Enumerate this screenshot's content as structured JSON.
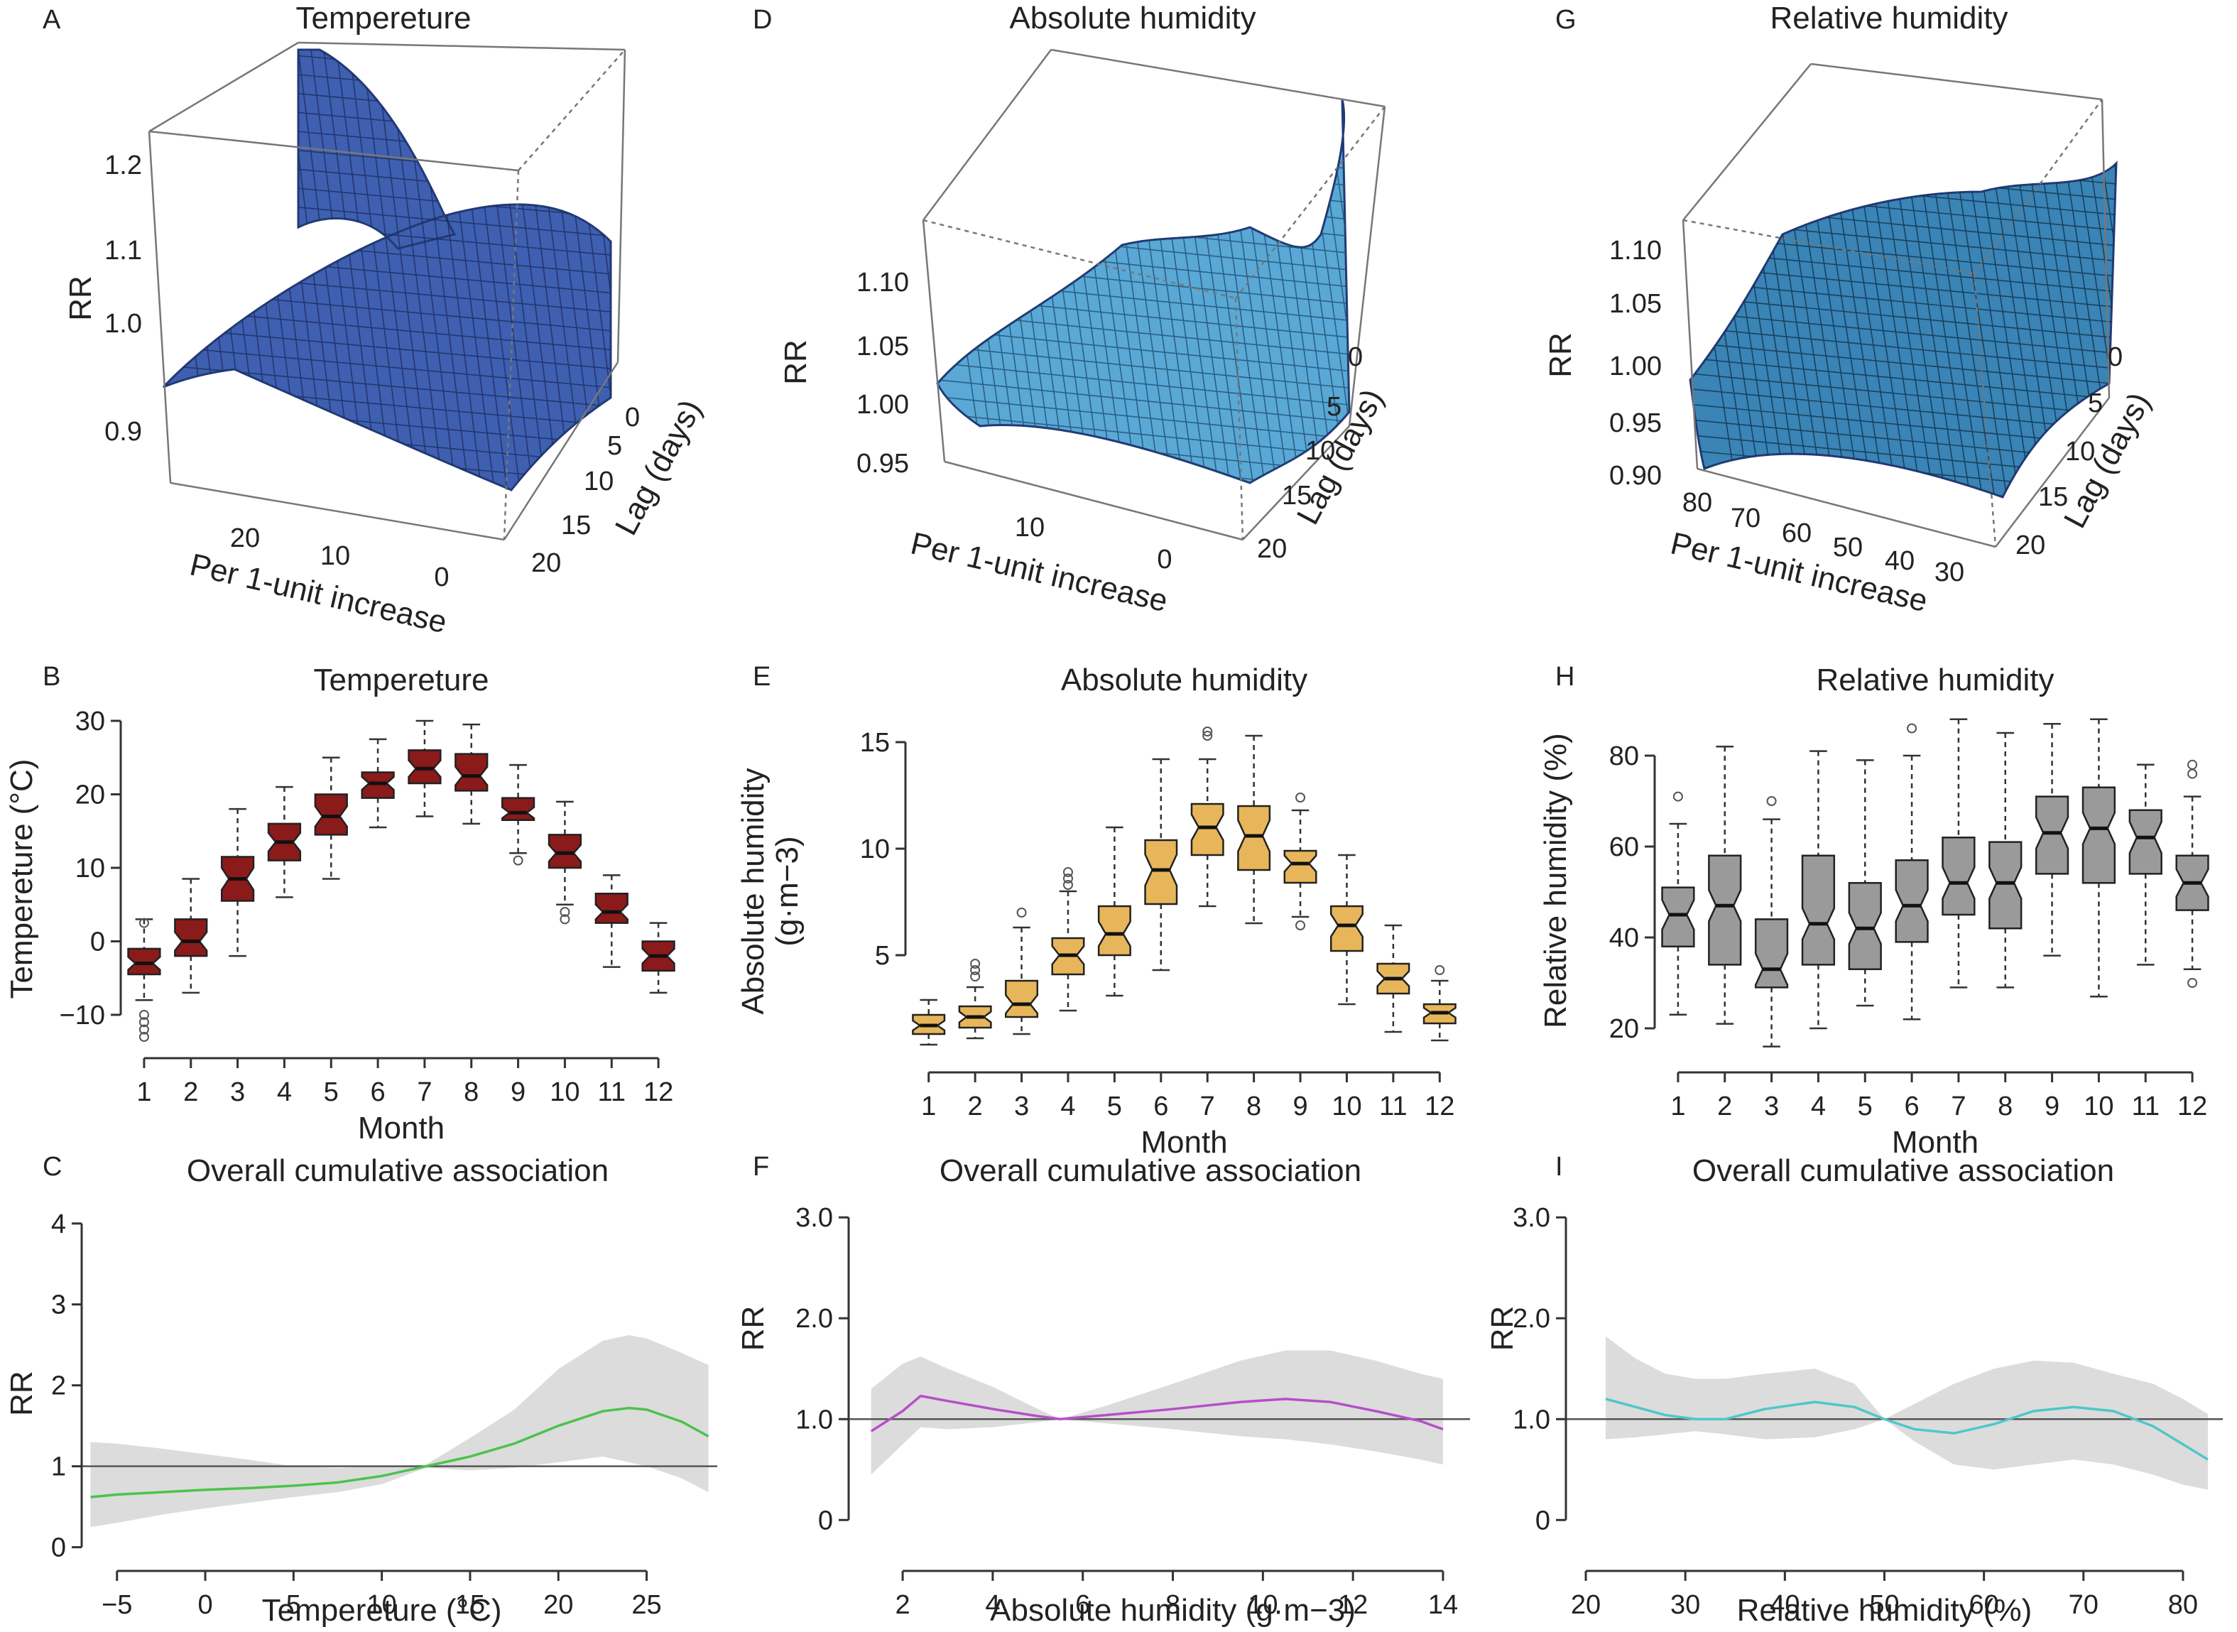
{
  "figure": {
    "panel_letters": [
      "A",
      "B",
      "C",
      "D",
      "E",
      "F",
      "G",
      "H",
      "I"
    ]
  },
  "chart_data": [
    {
      "panel": "A",
      "type": "surface3d",
      "title": "Tempereture",
      "zlabel": "RR",
      "xlabel": "Per 1-unit increase",
      "ylabel": "Lag (days)",
      "zticks": [
        "0.9",
        "1.0",
        "1.1",
        "1.2"
      ],
      "xticks": [
        "20",
        "10",
        "0"
      ],
      "yticks": [
        "0",
        "5",
        "10",
        "15",
        "20"
      ],
      "colors": {
        "surface": "#3f5fb0",
        "mesh": "#1c2d61"
      }
    },
    {
      "panel": "D",
      "type": "surface3d",
      "title": "Absolute humidity",
      "zlabel": "RR",
      "xlabel": "Per 1-unit increase",
      "ylabel": "Lag (days)",
      "zticks": [
        "0.95",
        "1.00",
        "1.05",
        "1.10"
      ],
      "xticks": [
        "10",
        "0"
      ],
      "yticks": [
        "0",
        "5",
        "10",
        "15",
        "20"
      ],
      "colors": {
        "surface": "#5aa8d6",
        "mesh": "#1d4f70"
      }
    },
    {
      "panel": "G",
      "type": "surface3d",
      "title": "Relative humidity",
      "zlabel": "RR",
      "xlabel": "Per 1-unit increase",
      "ylabel": "Lag (days)",
      "zticks": [
        "0.90",
        "0.95",
        "1.00",
        "1.05",
        "1.10"
      ],
      "xticks": [
        "80",
        "70",
        "60",
        "50",
        "40",
        "30"
      ],
      "yticks": [
        "0",
        "5",
        "10",
        "15",
        "20"
      ],
      "colors": {
        "surface": "#3a84b6",
        "mesh": "#10324a"
      }
    },
    {
      "panel": "B",
      "type": "boxplot",
      "title": "Tempereture",
      "xlabel": "Month",
      "ylabel": "Tempereture (°C)",
      "categories": [
        "1",
        "2",
        "3",
        "4",
        "5",
        "6",
        "7",
        "8",
        "9",
        "10",
        "11",
        "12"
      ],
      "yticks": [
        -10,
        0,
        10,
        20,
        30
      ],
      "ytick_labels": [
        "−10",
        "0",
        "10",
        "20",
        "30"
      ],
      "ylim": [
        -13,
        30
      ],
      "color": "#8b1a1a",
      "boxes": [
        {
          "min": -8,
          "q1": -4.5,
          "median": -3,
          "q3": -1,
          "max": 3,
          "outliers": [
            -10,
            -11,
            -12,
            -13,
            2.5
          ]
        },
        {
          "min": -7,
          "q1": -2,
          "median": 0,
          "q3": 3,
          "max": 8.5,
          "outliers": []
        },
        {
          "min": -2,
          "q1": 5.5,
          "median": 8.5,
          "q3": 11.5,
          "max": 18,
          "outliers": []
        },
        {
          "min": 6,
          "q1": 11,
          "median": 13.5,
          "q3": 16,
          "max": 21,
          "outliers": []
        },
        {
          "min": 8.5,
          "q1": 14.5,
          "median": 17,
          "q3": 20,
          "max": 25,
          "outliers": []
        },
        {
          "min": 15.5,
          "q1": 19.5,
          "median": 21.5,
          "q3": 23,
          "max": 27.5,
          "outliers": []
        },
        {
          "min": 17,
          "q1": 21.5,
          "median": 23.5,
          "q3": 26,
          "max": 30,
          "outliers": []
        },
        {
          "min": 16,
          "q1": 20.5,
          "median": 22.5,
          "q3": 25.5,
          "max": 29.5,
          "outliers": []
        },
        {
          "min": 12,
          "q1": 16.5,
          "median": 17.5,
          "q3": 19.5,
          "max": 24,
          "outliers": [
            11
          ]
        },
        {
          "min": 5,
          "q1": 10,
          "median": 12,
          "q3": 14.5,
          "max": 19,
          "outliers": [
            3,
            4
          ]
        },
        {
          "min": -3.5,
          "q1": 2.5,
          "median": 4,
          "q3": 6.5,
          "max": 9,
          "outliers": []
        },
        {
          "min": -7,
          "q1": -4,
          "median": -2,
          "q3": 0,
          "max": 2.5,
          "outliers": []
        }
      ]
    },
    {
      "panel": "E",
      "type": "boxplot",
      "title": "Absolute humidity",
      "xlabel": "Month",
      "ylabel": "Absolute humidity",
      "ylabel2": "(g·m−3)",
      "categories": [
        "1",
        "2",
        "3",
        "4",
        "5",
        "6",
        "7",
        "8",
        "9",
        "10",
        "11",
        "12"
      ],
      "yticks": [
        5,
        10,
        15
      ],
      "ytick_labels": [
        "5",
        "10",
        "15"
      ],
      "ylim": [
        0.5,
        15.5
      ],
      "color": "#e8b65a",
      "boxes": [
        {
          "min": 0.8,
          "q1": 1.3,
          "median": 1.7,
          "q3": 2.2,
          "max": 2.9,
          "outliers": []
        },
        {
          "min": 1.1,
          "q1": 1.6,
          "median": 2.1,
          "q3": 2.6,
          "max": 3.5,
          "outliers": [
            4.0,
            4.3,
            4.6
          ]
        },
        {
          "min": 1.3,
          "q1": 2.1,
          "median": 2.7,
          "q3": 3.8,
          "max": 6.3,
          "outliers": [
            7.0
          ]
        },
        {
          "min": 2.4,
          "q1": 4.1,
          "median": 5.0,
          "q3": 5.8,
          "max": 8.0,
          "outliers": [
            8.3,
            8.6,
            8.9
          ]
        },
        {
          "min": 3.1,
          "q1": 5.0,
          "median": 6.0,
          "q3": 7.3,
          "max": 11.0,
          "outliers": []
        },
        {
          "min": 4.3,
          "q1": 7.4,
          "median": 9.0,
          "q3": 10.4,
          "max": 14.2,
          "outliers": []
        },
        {
          "min": 7.3,
          "q1": 9.7,
          "median": 11.0,
          "q3": 12.1,
          "max": 14.2,
          "outliers": [
            15.3,
            15.5
          ]
        },
        {
          "min": 6.5,
          "q1": 9.0,
          "median": 10.6,
          "q3": 12.0,
          "max": 15.3,
          "outliers": []
        },
        {
          "min": 6.8,
          "q1": 8.4,
          "median": 9.3,
          "q3": 9.9,
          "max": 11.8,
          "outliers": [
            6.4,
            12.4
          ]
        },
        {
          "min": 2.7,
          "q1": 5.2,
          "median": 6.4,
          "q3": 7.3,
          "max": 9.7,
          "outliers": []
        },
        {
          "min": 1.4,
          "q1": 3.2,
          "median": 3.9,
          "q3": 4.6,
          "max": 6.4,
          "outliers": []
        },
        {
          "min": 1.0,
          "q1": 1.8,
          "median": 2.3,
          "q3": 2.7,
          "max": 3.8,
          "outliers": [
            4.3
          ]
        }
      ]
    },
    {
      "panel": "H",
      "type": "boxplot",
      "title": "Relative humidity",
      "xlabel": "Month",
      "ylabel": "Relative humidity (%)",
      "categories": [
        "1",
        "2",
        "3",
        "4",
        "5",
        "6",
        "7",
        "8",
        "9",
        "10",
        "11",
        "12"
      ],
      "yticks": [
        20,
        40,
        60,
        80
      ],
      "ytick_labels": [
        "20",
        "40",
        "60",
        "80"
      ],
      "ylim": [
        15,
        90
      ],
      "color": "#9a9a9a",
      "boxes": [
        {
          "min": 23,
          "q1": 38,
          "median": 45,
          "q3": 51,
          "max": 65,
          "outliers": [
            71
          ]
        },
        {
          "min": 21,
          "q1": 34,
          "median": 47,
          "q3": 58,
          "max": 82,
          "outliers": []
        },
        {
          "min": 16,
          "q1": 29,
          "median": 33,
          "q3": 44,
          "max": 66,
          "outliers": [
            70
          ]
        },
        {
          "min": 20,
          "q1": 34,
          "median": 43,
          "q3": 58,
          "max": 81,
          "outliers": []
        },
        {
          "min": 25,
          "q1": 33,
          "median": 42,
          "q3": 52,
          "max": 79,
          "outliers": []
        },
        {
          "min": 22,
          "q1": 39,
          "median": 47,
          "q3": 57,
          "max": 80,
          "outliers": [
            86
          ]
        },
        {
          "min": 29,
          "q1": 45,
          "median": 52,
          "q3": 62,
          "max": 88,
          "outliers": []
        },
        {
          "min": 29,
          "q1": 42,
          "median": 52,
          "q3": 61,
          "max": 85,
          "outliers": []
        },
        {
          "min": 36,
          "q1": 54,
          "median": 63,
          "q3": 71,
          "max": 87,
          "outliers": []
        },
        {
          "min": 27,
          "q1": 52,
          "median": 64,
          "q3": 73,
          "max": 88,
          "outliers": []
        },
        {
          "min": 34,
          "q1": 54,
          "median": 62,
          "q3": 68,
          "max": 78,
          "outliers": []
        },
        {
          "min": 33,
          "q1": 46,
          "median": 52,
          "q3": 58,
          "max": 71,
          "outliers": [
            30,
            76,
            78
          ]
        }
      ]
    },
    {
      "panel": "C",
      "type": "line",
      "title": "Overall cumulative association",
      "xlabel": "Tempereture (°C)",
      "ylabel": "RR",
      "xticks": [
        -5,
        0,
        5,
        10,
        15,
        20,
        25
      ],
      "xtick_labels": [
        "−5",
        "0",
        "5",
        "10",
        "15",
        "20",
        "25"
      ],
      "yticks": [
        0,
        1,
        2,
        3,
        4
      ],
      "ytick_labels": [
        "0",
        "1",
        "2",
        "3",
        "4"
      ],
      "xlim": [
        -7,
        29
      ],
      "ylim": [
        -0.1,
        4.2
      ],
      "reference_y": 1,
      "line_color": "#4cc24c",
      "x": [
        -6.5,
        -5,
        -2.5,
        0,
        2.5,
        5,
        7.5,
        10,
        12.5,
        15,
        17.5,
        20,
        22.5,
        24,
        25,
        27,
        28.5
      ],
      "y": [
        0.62,
        0.65,
        0.68,
        0.71,
        0.73,
        0.76,
        0.8,
        0.88,
        1.0,
        1.12,
        1.28,
        1.5,
        1.68,
        1.72,
        1.7,
        1.55,
        1.37
      ],
      "lower": [
        0.25,
        0.3,
        0.4,
        0.48,
        0.55,
        0.62,
        0.68,
        0.78,
        0.98,
        0.95,
        0.98,
        1.05,
        1.12,
        1.05,
        1.0,
        0.85,
        0.68
      ],
      "upper": [
        1.3,
        1.28,
        1.22,
        1.15,
        1.08,
        1.0,
        0.98,
        1.0,
        1.02,
        1.35,
        1.7,
        2.2,
        2.55,
        2.62,
        2.58,
        2.4,
        2.25
      ]
    },
    {
      "panel": "F",
      "type": "line",
      "title": "Overall cumulative association",
      "xlabel": "Absolute humidity (g·m−3)",
      "ylabel": "RR",
      "xticks": [
        2,
        4,
        6,
        8,
        10,
        12,
        14
      ],
      "xtick_labels": [
        "2",
        "4",
        "6",
        "8",
        "10",
        "12",
        "14"
      ],
      "yticks": [
        0,
        1,
        2,
        3
      ],
      "ytick_labels": [
        "0",
        "1.0",
        "2.0",
        "3.0"
      ],
      "xlim": [
        0.8,
        14.6
      ],
      "ylim": [
        -0.35,
        3.1
      ],
      "reference_y": 1,
      "line_color": "#b64fc8",
      "x": [
        1.3,
        2.0,
        2.4,
        3.0,
        4.0,
        5.0,
        5.5,
        6.5,
        8.0,
        9.5,
        10.5,
        11.5,
        12.5,
        13.5,
        14.0
      ],
      "y": [
        0.88,
        1.08,
        1.23,
        1.18,
        1.1,
        1.03,
        1.0,
        1.04,
        1.1,
        1.17,
        1.2,
        1.17,
        1.08,
        0.98,
        0.9
      ],
      "lower": [
        0.45,
        0.75,
        0.92,
        0.9,
        0.92,
        0.97,
        1.0,
        0.96,
        0.9,
        0.83,
        0.8,
        0.75,
        0.68,
        0.6,
        0.55
      ],
      "upper": [
        1.3,
        1.55,
        1.62,
        1.5,
        1.32,
        1.1,
        1.0,
        1.13,
        1.35,
        1.58,
        1.68,
        1.68,
        1.58,
        1.45,
        1.4
      ]
    },
    {
      "panel": "I",
      "type": "line",
      "title": "Overall cumulative association",
      "xlabel": "Relative humidity (%)",
      "ylabel": "RR",
      "xticks": [
        20,
        30,
        40,
        50,
        60,
        70,
        80
      ],
      "xtick_labels": [
        "20",
        "30",
        "40",
        "50",
        "60",
        "70",
        "80"
      ],
      "yticks": [
        0,
        1,
        2,
        3
      ],
      "ytick_labels": [
        "0",
        "1.0",
        "2.0",
        "3.0"
      ],
      "xlim": [
        18,
        84
      ],
      "ylim": [
        -0.35,
        3.1
      ],
      "reference_y": 1,
      "line_color": "#4fc7c9",
      "x": [
        22,
        25,
        28,
        31,
        34,
        38,
        43,
        47,
        50,
        53,
        57,
        61,
        65,
        69,
        73,
        77,
        80,
        82.5
      ],
      "y": [
        1.2,
        1.12,
        1.04,
        1.0,
        1.0,
        1.1,
        1.17,
        1.12,
        1.0,
        0.9,
        0.86,
        0.95,
        1.08,
        1.12,
        1.08,
        0.93,
        0.75,
        0.6
      ],
      "lower": [
        0.8,
        0.82,
        0.85,
        0.88,
        0.85,
        0.8,
        0.82,
        0.9,
        1.0,
        0.78,
        0.55,
        0.5,
        0.55,
        0.6,
        0.55,
        0.45,
        0.35,
        0.3
      ],
      "upper": [
        1.82,
        1.6,
        1.45,
        1.4,
        1.4,
        1.45,
        1.5,
        1.35,
        1.0,
        1.15,
        1.35,
        1.5,
        1.58,
        1.56,
        1.45,
        1.35,
        1.2,
        1.05
      ]
    }
  ]
}
